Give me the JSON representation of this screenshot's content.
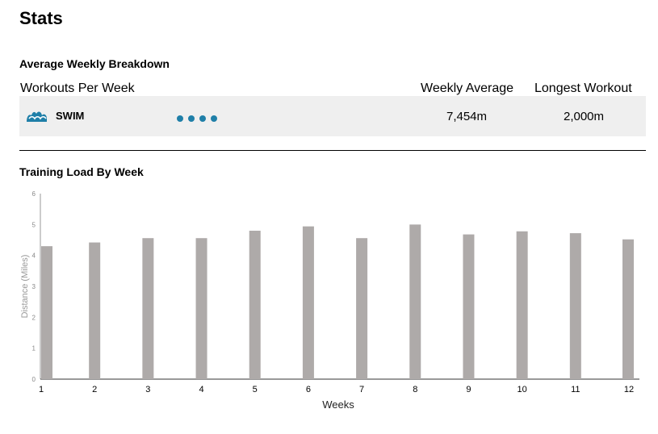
{
  "page": {
    "title": "Stats"
  },
  "breakdown": {
    "title": "Average Weekly Breakdown",
    "headers": {
      "workouts_per_week": "Workouts Per Week",
      "weekly_average": "Weekly Average",
      "longest_workout": "Longest Workout"
    },
    "rows": [
      {
        "sport": "SWIM",
        "icon": "wave-icon",
        "workouts_per_week": 4,
        "weekly_average": "7,454m",
        "longest_workout": "2,000m"
      }
    ],
    "accent_color": "#1f7fa8"
  },
  "training": {
    "title": "Training Load By Week"
  },
  "chart_data": {
    "type": "bar",
    "title": "",
    "xlabel": "Weeks",
    "ylabel": "Distance (Miles)",
    "categories": [
      "1",
      "2",
      "3",
      "4",
      "5",
      "6",
      "7",
      "8",
      "9",
      "10",
      "11",
      "12"
    ],
    "values": [
      4.3,
      4.42,
      4.56,
      4.56,
      4.8,
      4.94,
      4.56,
      5.0,
      4.68,
      4.78,
      4.72,
      4.52
    ],
    "ylim": [
      0,
      6
    ],
    "yticks": [
      0,
      1,
      2,
      3,
      4,
      5,
      6
    ],
    "grid": false,
    "bar_color": "#aeaaa9"
  }
}
